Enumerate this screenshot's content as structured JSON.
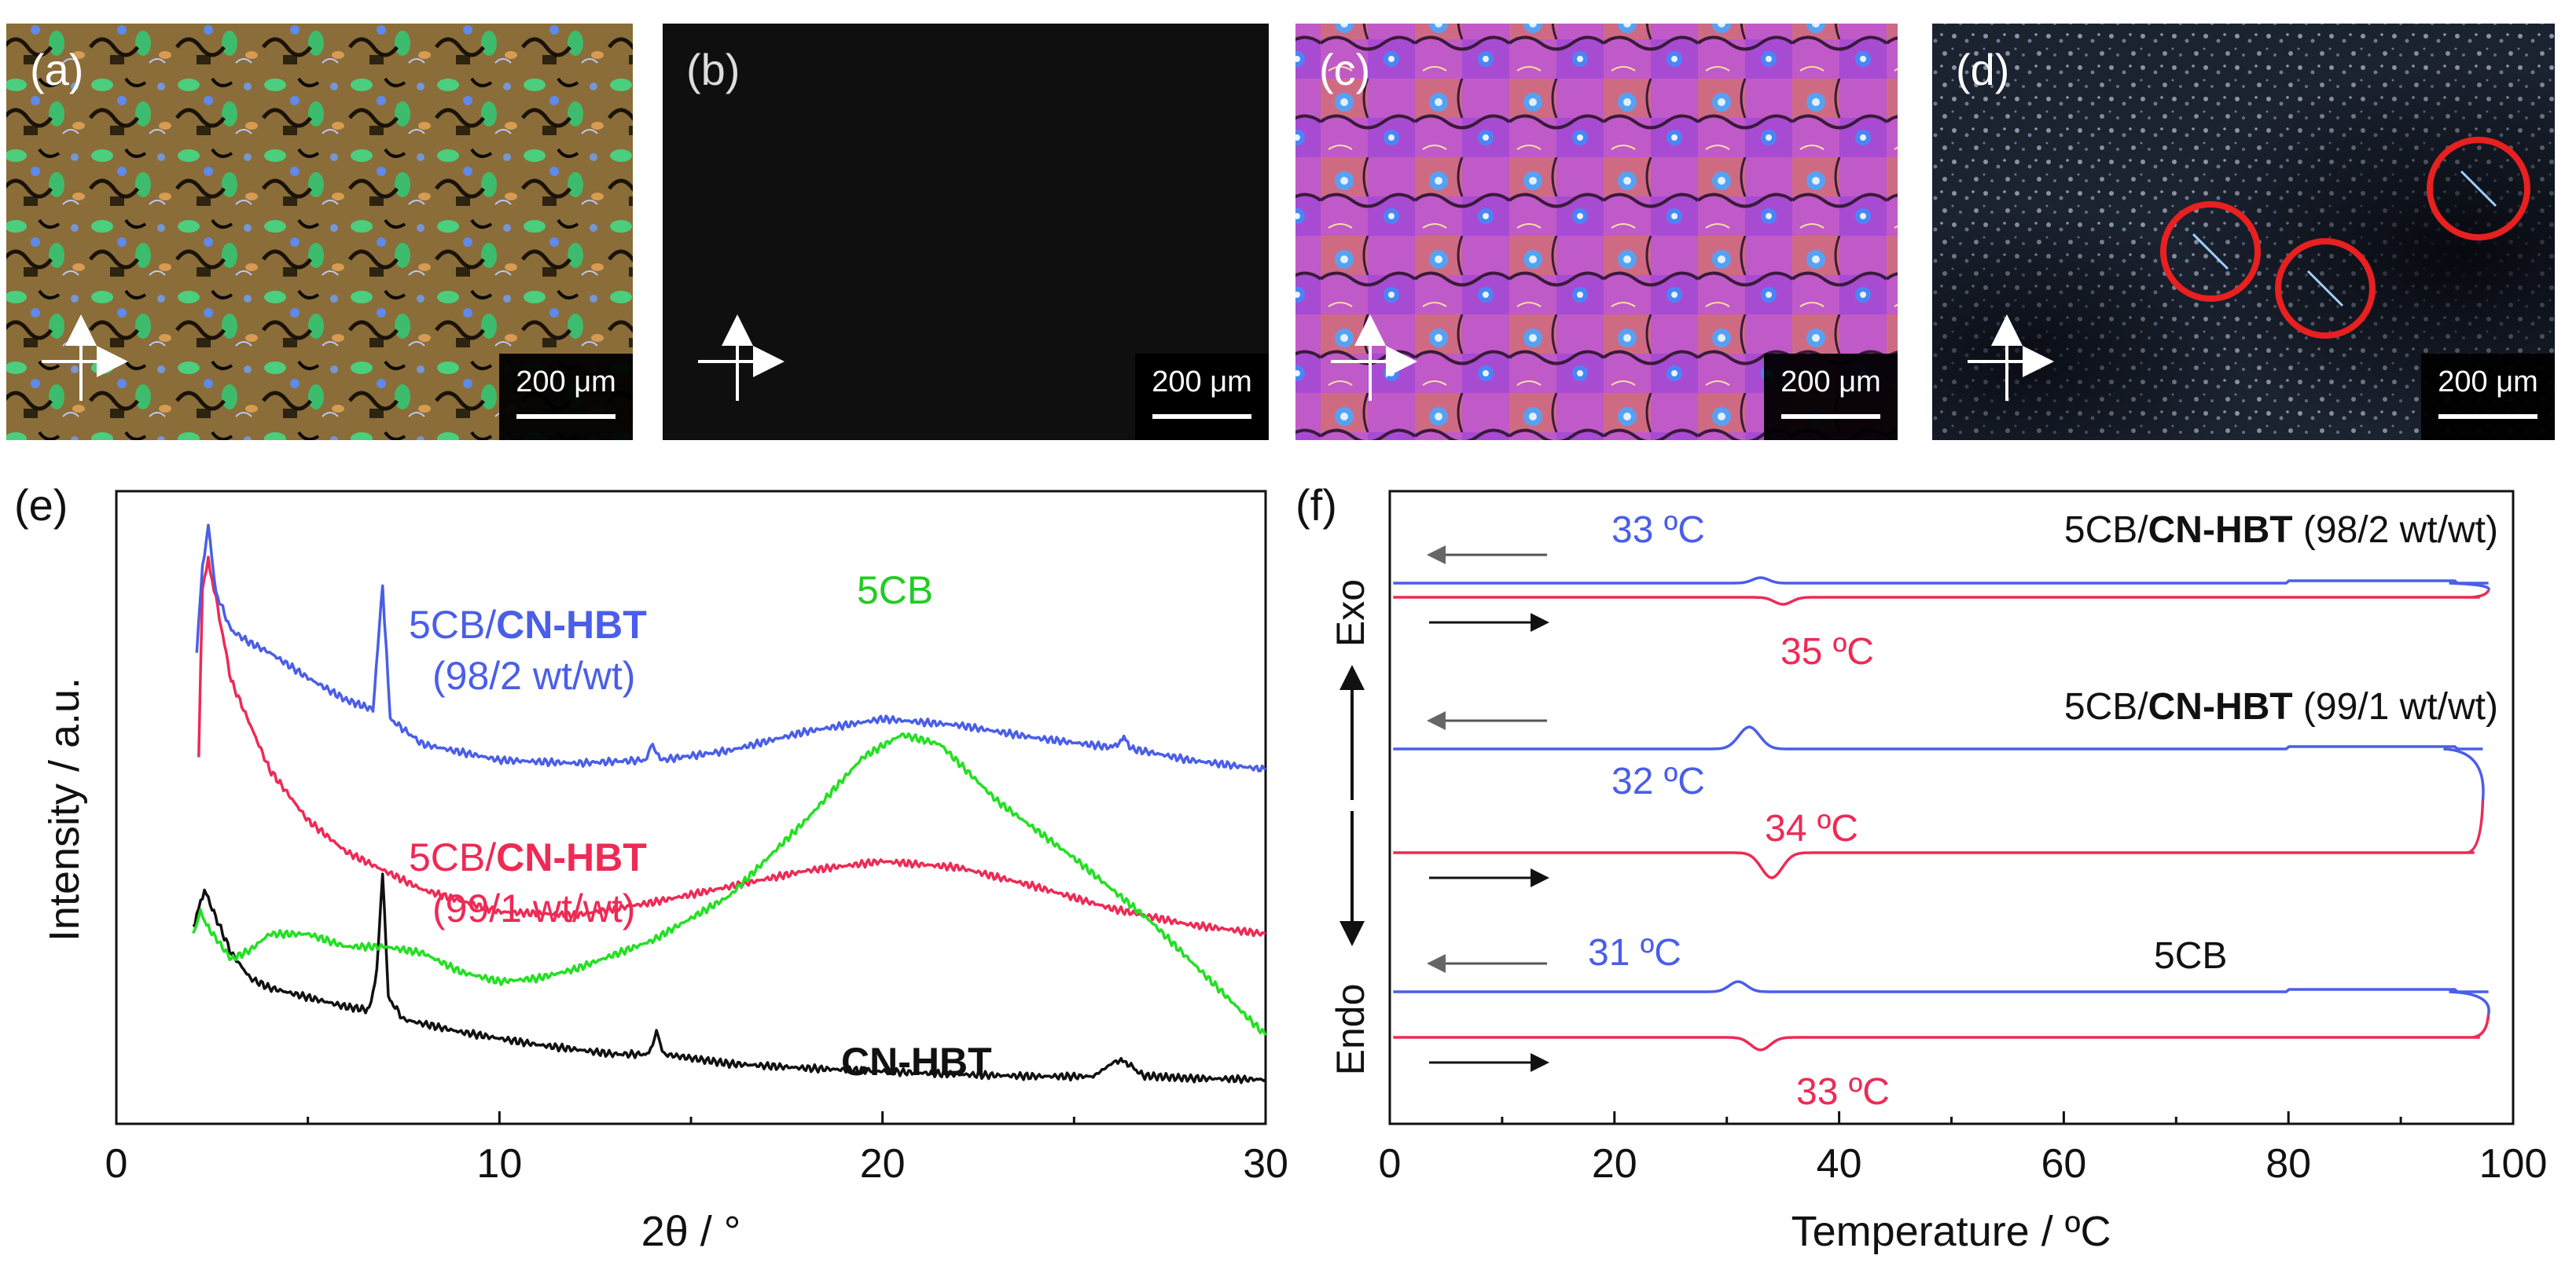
{
  "micrographs": [
    {
      "label": "(a)",
      "scale_bar": "200 μm",
      "texture": "colorful birefringent texture, green and orange with blue defects"
    },
    {
      "label": "(b)",
      "scale_bar": "200 μm",
      "texture": "dark field"
    },
    {
      "label": "(c)",
      "scale_bar": "200 μm",
      "texture": "orange/magenta/blue schlieren texture"
    },
    {
      "label": "(d)",
      "scale_bar": "200 μm",
      "texture": "grainy textured with dark region and circled needle crystals"
    }
  ],
  "colors": {
    "blue": "#4a5ee8",
    "red": "#ee2a55",
    "green": "#22e022",
    "black": "#111111",
    "circle": "#e82020"
  },
  "chart_data": [
    {
      "panel": "(e)",
      "type": "line",
      "xlabel": "2θ / °",
      "ylabel": "Intensity / a.u.",
      "xlim": [
        0,
        30
      ],
      "xticks": [
        0,
        10,
        20,
        30
      ],
      "series": [
        {
          "name": "CN-HBT",
          "color": "black",
          "points": [
            [
              2,
              0.31
            ],
            [
              2.1,
              0.33
            ],
            [
              2.3,
              0.37
            ],
            [
              2.5,
              0.34
            ],
            [
              3,
              0.27
            ],
            [
              3.5,
              0.23
            ],
            [
              4,
              0.215
            ],
            [
              5,
              0.2
            ],
            [
              6,
              0.185
            ],
            [
              6.6,
              0.18
            ],
            [
              6.8,
              0.24
            ],
            [
              6.95,
              0.4
            ],
            [
              7.1,
              0.2
            ],
            [
              7.5,
              0.165
            ],
            [
              9,
              0.145
            ],
            [
              11,
              0.125
            ],
            [
              13,
              0.11
            ],
            [
              13.9,
              0.11
            ],
            [
              14.1,
              0.145
            ],
            [
              14.3,
              0.11
            ],
            [
              16,
              0.095
            ],
            [
              18,
              0.088
            ],
            [
              20,
              0.083
            ],
            [
              22,
              0.078
            ],
            [
              24,
              0.075
            ],
            [
              25.5,
              0.075
            ],
            [
              26.1,
              0.1
            ],
            [
              26.4,
              0.096
            ],
            [
              26.8,
              0.076
            ],
            [
              28,
              0.072
            ],
            [
              30,
              0.07
            ]
          ]
        },
        {
          "name": "5CB/CN-HBT (99/1 wt/wt)",
          "color": "red",
          "points": [
            [
              2.15,
              0.58
            ],
            [
              2.25,
              0.85
            ],
            [
              2.4,
              0.89
            ],
            [
              2.6,
              0.83
            ],
            [
              3,
              0.7
            ],
            [
              4,
              0.56
            ],
            [
              5,
              0.48
            ],
            [
              6,
              0.43
            ],
            [
              8,
              0.37
            ],
            [
              10,
              0.335
            ],
            [
              12,
              0.33
            ],
            [
              14,
              0.35
            ],
            [
              16,
              0.375
            ],
            [
              18,
              0.4
            ],
            [
              20,
              0.415
            ],
            [
              22,
              0.405
            ],
            [
              24,
              0.375
            ],
            [
              26,
              0.34
            ],
            [
              28,
              0.315
            ],
            [
              30,
              0.3
            ]
          ]
        },
        {
          "name": "5CB",
          "color": "green",
          "points": [
            [
              2,
              0.3
            ],
            [
              2.2,
              0.335
            ],
            [
              2.4,
              0.31
            ],
            [
              3,
              0.26
            ],
            [
              3.5,
              0.275
            ],
            [
              4,
              0.3
            ],
            [
              5,
              0.3
            ],
            [
              6,
              0.28
            ],
            [
              7,
              0.28
            ],
            [
              8,
              0.27
            ],
            [
              9,
              0.24
            ],
            [
              10,
              0.225
            ],
            [
              11,
              0.23
            ],
            [
              12,
              0.245
            ],
            [
              14,
              0.29
            ],
            [
              16,
              0.36
            ],
            [
              18,
              0.48
            ],
            [
              19.5,
              0.58
            ],
            [
              20.5,
              0.615
            ],
            [
              21.5,
              0.6
            ],
            [
              23,
              0.51
            ],
            [
              25,
              0.42
            ],
            [
              27,
              0.32
            ],
            [
              28.5,
              0.23
            ],
            [
              30,
              0.14
            ]
          ]
        },
        {
          "name": "5CB/CN-HBT (98/2 wt/wt)",
          "color": "blue",
          "points": [
            [
              2.1,
              0.75
            ],
            [
              2.25,
              0.88
            ],
            [
              2.4,
              0.945
            ],
            [
              2.6,
              0.84
            ],
            [
              3,
              0.78
            ],
            [
              3.5,
              0.76
            ],
            [
              4,
              0.745
            ],
            [
              5,
              0.705
            ],
            [
              6,
              0.67
            ],
            [
              6.7,
              0.655
            ],
            [
              6.95,
              0.85
            ],
            [
              7.15,
              0.64
            ],
            [
              8,
              0.6
            ],
            [
              10,
              0.575
            ],
            [
              12,
              0.57
            ],
            [
              13.8,
              0.575
            ],
            [
              14.0,
              0.6
            ],
            [
              14.2,
              0.575
            ],
            [
              16,
              0.59
            ],
            [
              18,
              0.62
            ],
            [
              20,
              0.64
            ],
            [
              22,
              0.63
            ],
            [
              24,
              0.61
            ],
            [
              26,
              0.595
            ],
            [
              26.3,
              0.61
            ],
            [
              26.5,
              0.593
            ],
            [
              28,
              0.575
            ],
            [
              30,
              0.56
            ]
          ]
        }
      ],
      "annotations": [
        {
          "text_plain": "5CB/",
          "text_bold": "CN-HBT",
          "line2": "(98/2 wt/wt)",
          "color": "blue"
        },
        {
          "text_plain": "5CB",
          "color": "green"
        },
        {
          "text_plain": "5CB/",
          "text_bold": "CN-HBT",
          "line2": "(99/1 wt/wt)",
          "color": "red"
        },
        {
          "text_bold": "CN-HBT",
          "color": "black"
        }
      ]
    },
    {
      "panel": "(f)",
      "type": "line",
      "xlabel": "Temperature / ºC",
      "ylabel_top": "Exo",
      "ylabel_bottom": "Endo",
      "xlim": [
        0,
        100
      ],
      "xticks": [
        0,
        20,
        40,
        60,
        80,
        100
      ],
      "groups": [
        {
          "label_plain": "5CB/",
          "label_bold": "CN-HBT",
          "label_tail": " (98/2 wt/wt)",
          "cooling": {
            "peak_T": 33,
            "label": "33 ºC",
            "peak_amp": 7,
            "peak_width": 1.0
          },
          "heating": {
            "peak_T": 35,
            "label": "35 ºC",
            "peak_amp": 9,
            "peak_width": 1.1
          }
        },
        {
          "label_plain": "5CB/",
          "label_bold": "CN-HBT",
          "label_tail": " (99/1 wt/wt)",
          "cooling": {
            "peak_T": 32,
            "label": "32 ºC",
            "peak_amp": 28,
            "peak_width": 1.3
          },
          "heating": {
            "peak_T": 34,
            "label": "34 ºC",
            "peak_amp": 32,
            "peak_width": 1.3
          }
        },
        {
          "label_plain": "5CB",
          "label_bold": "",
          "label_tail": "",
          "cooling": {
            "peak_T": 31,
            "label": "31 ºC",
            "peak_amp": 13,
            "peak_width": 1.1
          },
          "heating": {
            "peak_T": 33,
            "label": "33 ºC",
            "peak_amp": 16,
            "peak_width": 1.2
          }
        }
      ]
    }
  ]
}
